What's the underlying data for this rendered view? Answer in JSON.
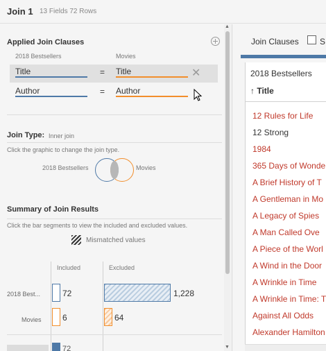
{
  "header": {
    "title": "Join 1",
    "meta": "13 Fields  72 Rows"
  },
  "applied": {
    "title": "Applied Join Clauses",
    "left_source": "2018 Bestsellers",
    "right_source": "Movies",
    "clauses": [
      {
        "left": "Title",
        "op": "=",
        "right": "Title"
      },
      {
        "left": "Author",
        "op": "=",
        "right": "Author"
      }
    ]
  },
  "join_type": {
    "label": "Join Type:",
    "value": "Inner join",
    "hint": "Click the graphic to change the join type.",
    "left_label": "2018 Bestsellers",
    "right_label": "Movies"
  },
  "summary": {
    "title": "Summary of Join Results",
    "hint": "Click the bar segments to view the included and excluded values.",
    "legend": "Mismatched values",
    "included_label": "Included",
    "excluded_label": "Excluded",
    "rows": [
      {
        "label": "2018 Best...",
        "included": "72",
        "excluded": "1,228"
      },
      {
        "label": "Movies",
        "included": "6",
        "excluded": "64"
      }
    ],
    "partial_value": "72"
  },
  "right_panel": {
    "tab": "Join Clauses",
    "tab_s": "S",
    "table_name": "2018 Bestsellers",
    "column": "↑ Title",
    "rows": [
      {
        "text": "12 Rules for Life",
        "color": "red"
      },
      {
        "text": "12 Strong",
        "color": "dark"
      },
      {
        "text": "1984",
        "color": "red"
      },
      {
        "text": "365 Days of Wonde",
        "color": "red"
      },
      {
        "text": "A Brief History of T",
        "color": "red"
      },
      {
        "text": "A Gentleman in Mo",
        "color": "red"
      },
      {
        "text": "A Legacy of Spies",
        "color": "red"
      },
      {
        "text": "A Man Called Ove",
        "color": "red"
      },
      {
        "text": "A Piece of the Worl",
        "color": "red"
      },
      {
        "text": "A Wind in the Door",
        "color": "red"
      },
      {
        "text": "A Wrinkle in Time",
        "color": "red"
      },
      {
        "text": "A Wrinkle in Time: T",
        "color": "red"
      },
      {
        "text": "Against All Odds",
        "color": "red"
      },
      {
        "text": "Alexander Hamilton",
        "color": "red"
      }
    ]
  }
}
